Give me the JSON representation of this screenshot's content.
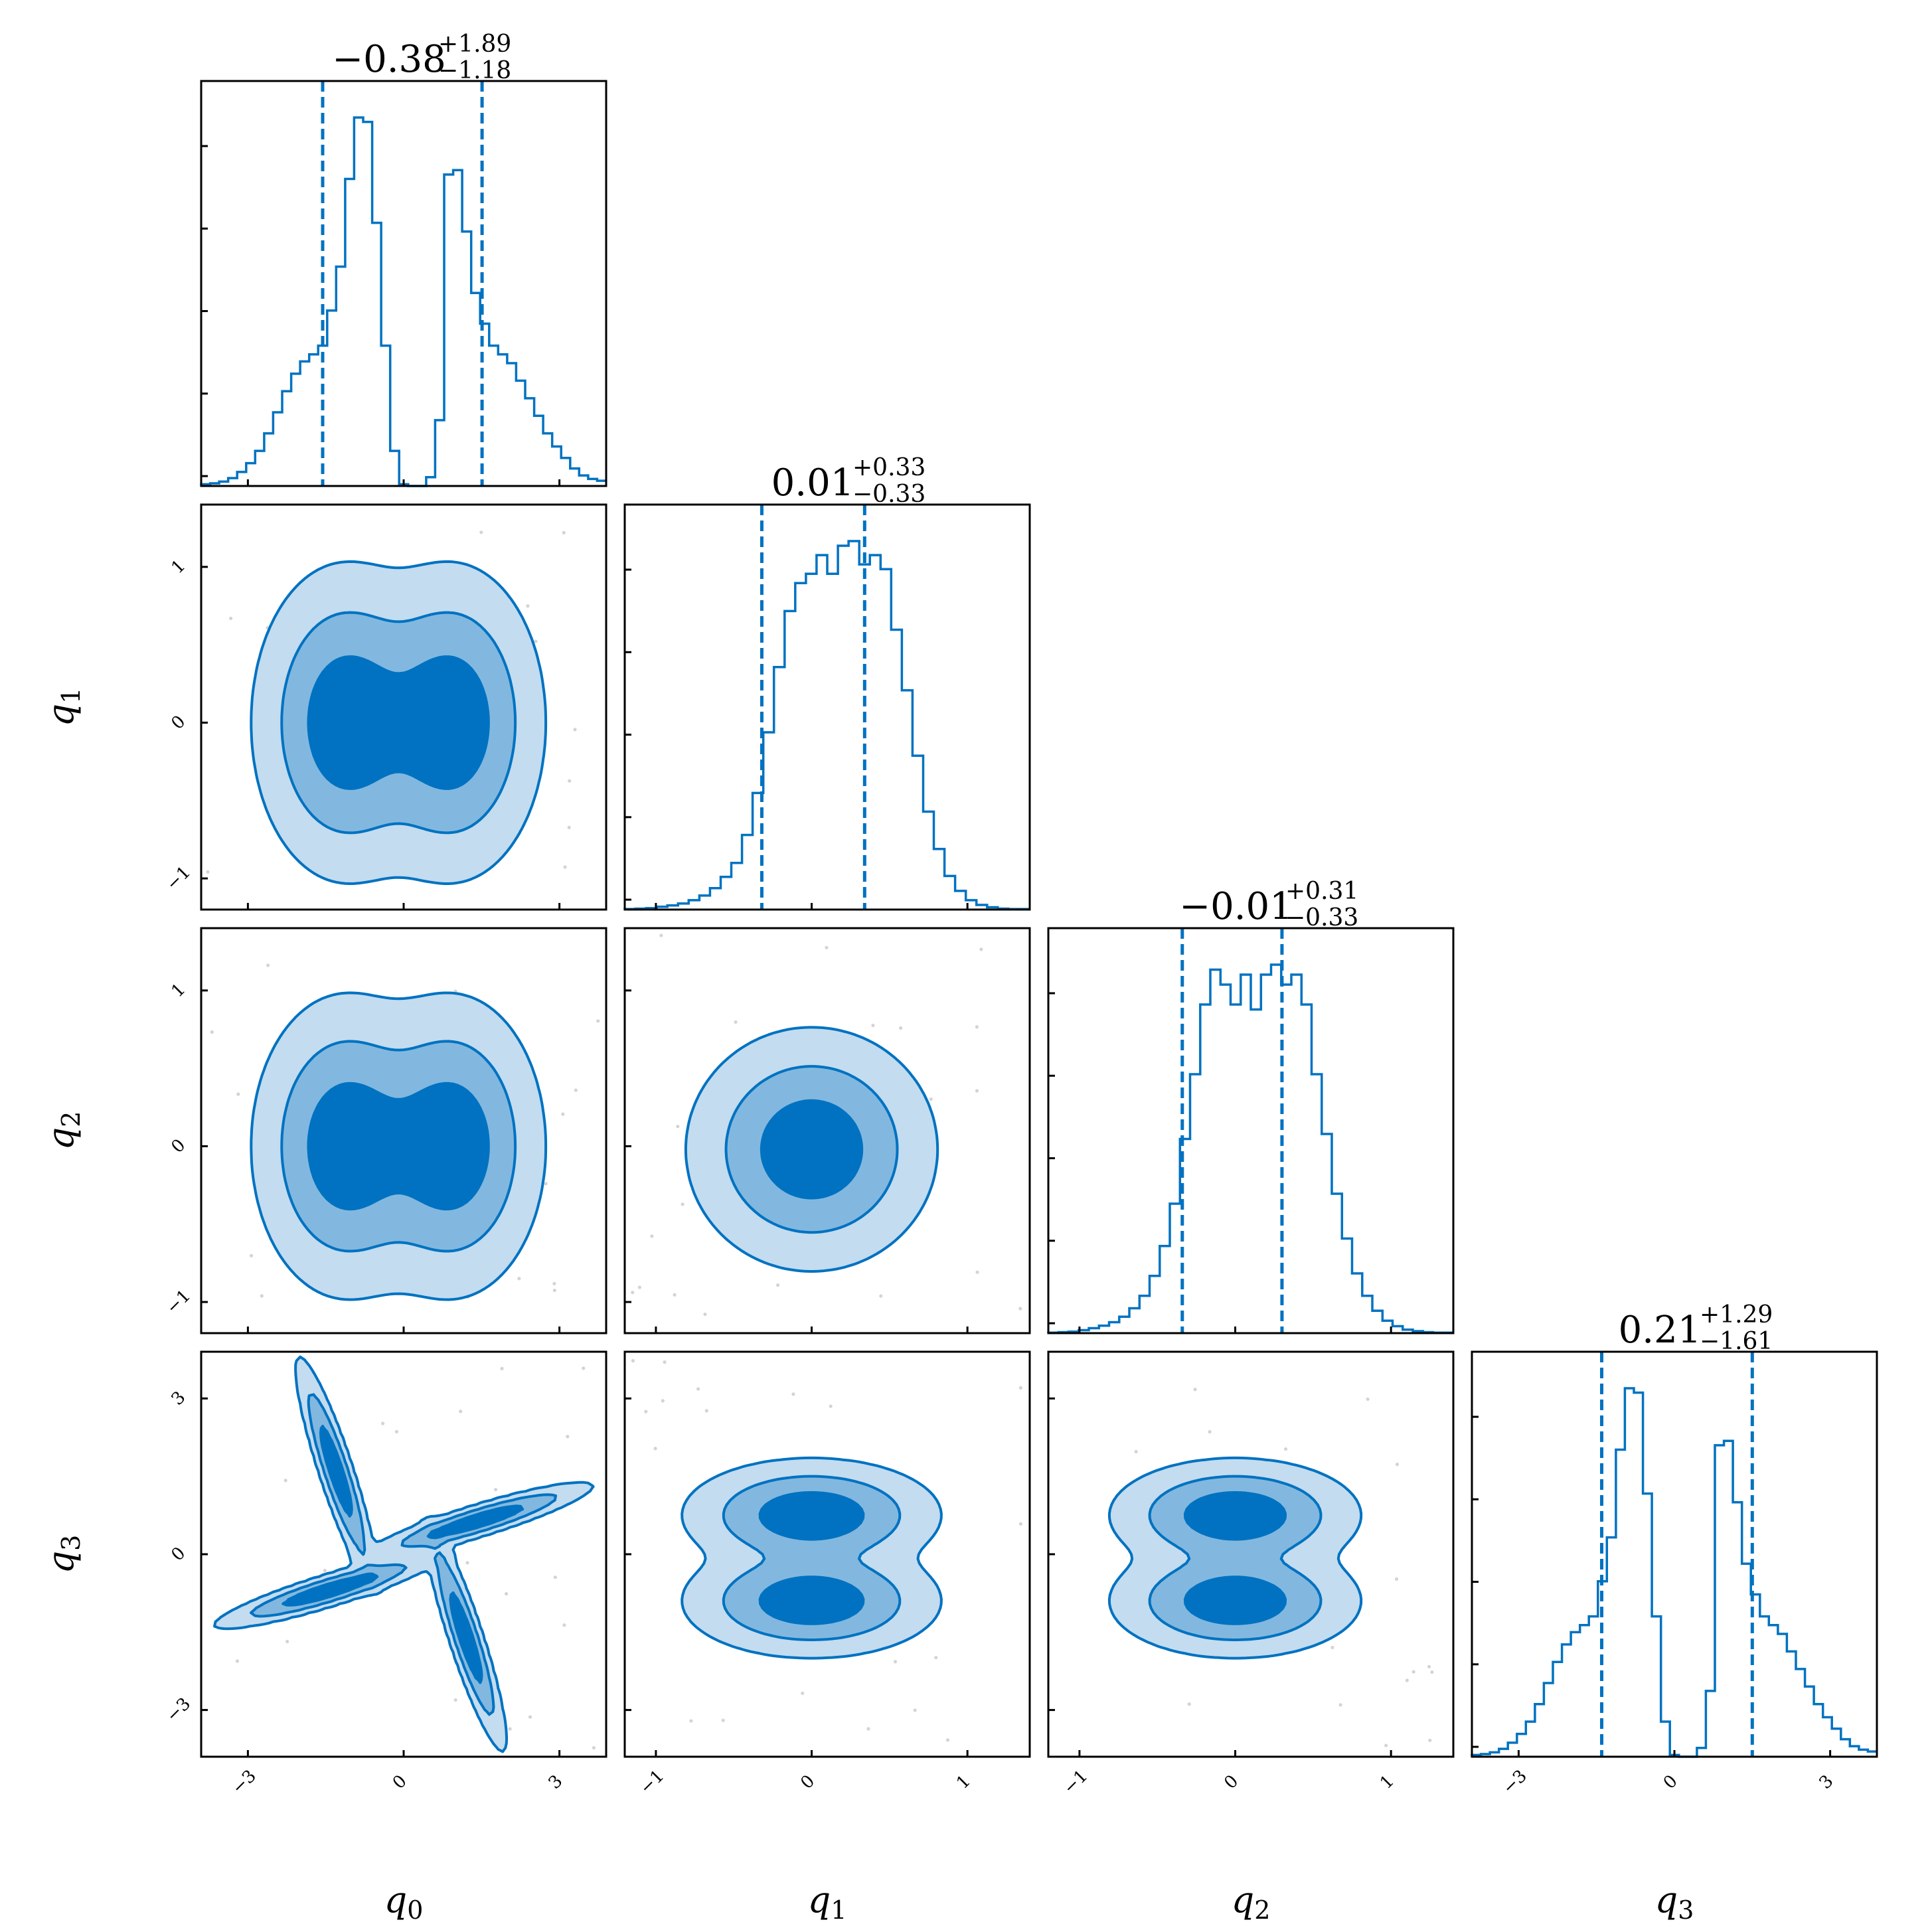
{
  "chart_data": {
    "type": "corner",
    "parameters": [
      "q0",
      "q1",
      "q2",
      "q3"
    ],
    "axis_labels": [
      {
        "base": "q",
        "sub": "0"
      },
      {
        "base": "q",
        "sub": "1"
      },
      {
        "base": "q",
        "sub": "2"
      },
      {
        "base": "q",
        "sub": "3"
      }
    ],
    "titles": [
      {
        "main": "−0.38",
        "sup": "+1.89",
        "sub": "−1.18"
      },
      {
        "main": "0.01",
        "sup": "+0.33",
        "sub": "−0.33"
      },
      {
        "main": "−0.01",
        "sup": "+0.31",
        "sub": "−0.33"
      },
      {
        "main": "0.21",
        "sup": "+1.29",
        "sub": "−1.61"
      }
    ],
    "ranges": [
      [
        -3.9,
        3.9
      ],
      [
        -1.2,
        1.4
      ],
      [
        -1.2,
        1.4
      ],
      [
        -3.9,
        3.9
      ]
    ],
    "ticks": [
      {
        "values": [
          -3,
          0,
          3
        ],
        "labels": [
          "−3",
          "0",
          "3"
        ]
      },
      {
        "values": [
          -1,
          0,
          1
        ],
        "labels": [
          "−1",
          "0",
          "1"
        ]
      },
      {
        "values": [
          -1,
          0,
          1
        ],
        "labels": [
          "−1",
          "0",
          "1"
        ]
      },
      {
        "values": [
          -3,
          0,
          3
        ],
        "labels": [
          "−3",
          "0",
          "3"
        ]
      }
    ],
    "quantile_lines": [
      [
        -1.56,
        1.51
      ],
      [
        -0.32,
        0.34
      ],
      [
        -0.34,
        0.3
      ],
      [
        -1.4,
        1.5
      ]
    ],
    "histograms": [
      {
        "param": "q0",
        "counts": [
          2,
          3,
          5,
          9,
          16,
          26,
          40,
          60,
          84,
          108,
          128,
          142,
          150,
          160,
          200,
          250,
          350,
          420,
          415,
          300,
          160,
          40,
          2,
          0,
          0,
          10,
          75,
          355,
          360,
          290,
          220,
          185,
          160,
          150,
          140,
          120,
          100,
          80,
          60,
          45,
          32,
          20,
          12,
          8,
          6
        ]
      },
      {
        "param": "q1",
        "counts": [
          1,
          2,
          3,
          6,
          9,
          13,
          20,
          30,
          46,
          70,
          100,
          160,
          250,
          380,
          520,
          640,
          700,
          720,
          760,
          720,
          780,
          790,
          740,
          760,
          730,
          600,
          470,
          330,
          210,
          130,
          72,
          40,
          20,
          10,
          5,
          2,
          1,
          1
        ]
      },
      {
        "param": "q2",
        "counts": [
          1,
          2,
          3,
          6,
          10,
          15,
          22,
          33,
          50,
          75,
          115,
          175,
          260,
          390,
          520,
          660,
          730,
          700,
          660,
          720,
          650,
          720,
          740,
          700,
          720,
          660,
          520,
          400,
          280,
          190,
          120,
          75,
          45,
          25,
          14,
          7,
          4,
          2,
          1,
          1
        ]
      },
      {
        "param": "q3",
        "counts": [
          2,
          3,
          5,
          9,
          16,
          26,
          40,
          60,
          84,
          108,
          128,
          142,
          150,
          160,
          200,
          250,
          350,
          420,
          415,
          300,
          160,
          40,
          2,
          0,
          0,
          10,
          75,
          355,
          360,
          290,
          220,
          185,
          160,
          150,
          140,
          120,
          100,
          80,
          60,
          45,
          32,
          20,
          12,
          8,
          6
        ]
      }
    ],
    "contour_levels": [
      "0.5",
      "1.0",
      "1.5",
      "2.0"
    ],
    "colors": {
      "line": "#0072c1",
      "fill_outer": "#c3dcf0",
      "fill_middle": "#82b8df",
      "fill_inner": "#0072c1",
      "scatter": "#d4d4d4"
    }
  }
}
